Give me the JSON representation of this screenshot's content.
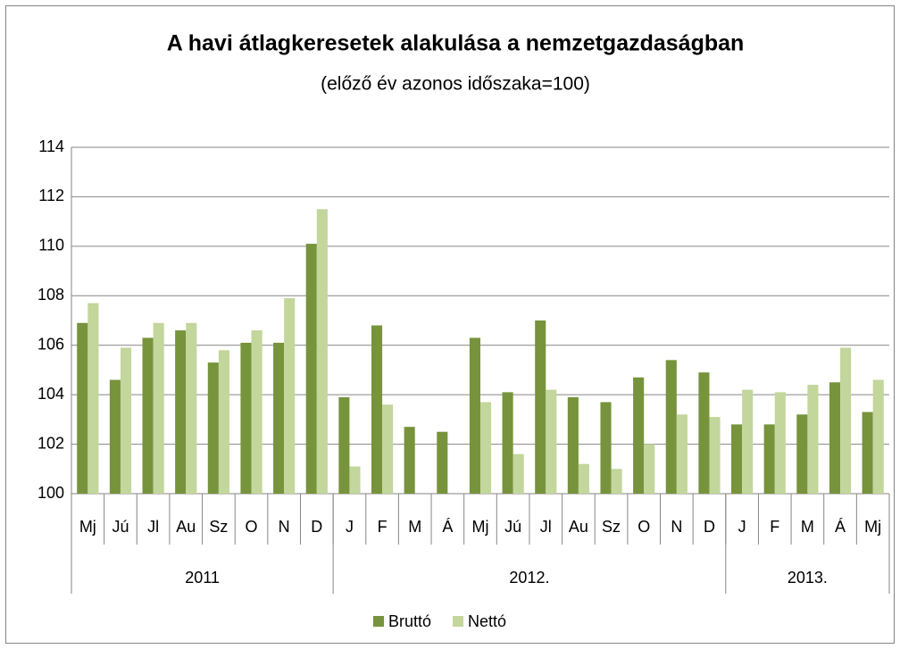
{
  "chart_data": {
    "type": "bar",
    "title": "A havi  átlagkeresetek alakulása a nemzetgazdaságban",
    "subtitle": "(előző év azonos időszaka=100)",
    "groups": [
      {
        "name": "2011",
        "categories": [
          "Mj",
          "Jú",
          "Jl",
          "Au",
          "Sz",
          "O",
          "N",
          "D"
        ]
      },
      {
        "name": "2012.",
        "categories": [
          "J",
          "F",
          "M",
          "Á",
          "Mj",
          "Jú",
          "Jl",
          "Au",
          "Sz",
          "O",
          "N",
          "D"
        ]
      },
      {
        "name": "2013.",
        "categories": [
          "J",
          "F",
          "M",
          "Á",
          "Mj"
        ]
      }
    ],
    "series": [
      {
        "name": "Bruttó",
        "color": "#77933c",
        "values": [
          106.9,
          104.6,
          106.3,
          106.6,
          105.3,
          106.1,
          106.1,
          110.1,
          103.9,
          106.8,
          102.7,
          102.5,
          106.3,
          104.1,
          107.0,
          103.9,
          103.7,
          104.7,
          105.4,
          104.9,
          102.8,
          102.8,
          103.2,
          104.5,
          103.3
        ]
      },
      {
        "name": "Nettó",
        "color": "#c3d69b",
        "values": [
          107.7,
          105.9,
          106.9,
          106.9,
          105.8,
          106.6,
          107.9,
          111.5,
          101.1,
          103.6,
          null,
          null,
          103.7,
          101.6,
          104.2,
          101.2,
          101.0,
          102.0,
          103.2,
          103.1,
          104.2,
          104.1,
          104.4,
          105.9,
          104.6
        ]
      }
    ],
    "ylim": [
      100,
      114
    ],
    "yticks": [
      100,
      102,
      104,
      106,
      108,
      110,
      112,
      114
    ],
    "grid": true,
    "legend": "bottom"
  }
}
